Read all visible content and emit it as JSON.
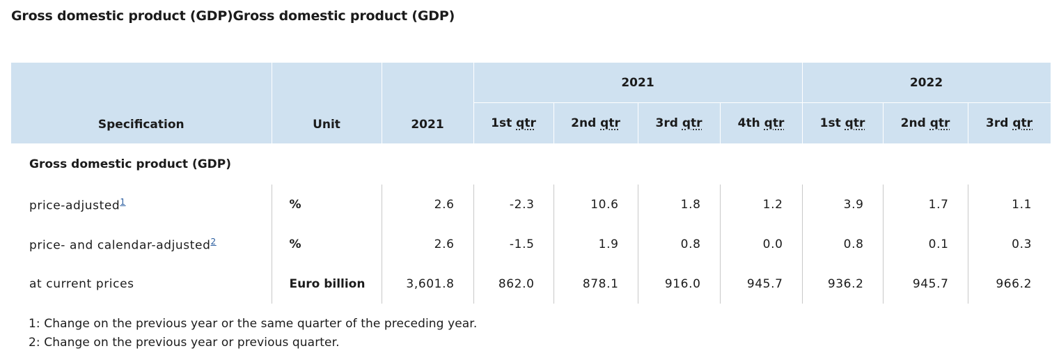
{
  "header": {
    "title": "Gross domestic product (GDP)Gross domestic product (GDP)"
  },
  "table": {
    "columns": [
      "Specification",
      "Unit",
      "2021"
    ],
    "groups": [
      {
        "label": "2021",
        "quarters": [
          {
            "ordinal": "1st",
            "abbr": "qtr"
          },
          {
            "ordinal": "2nd",
            "abbr": "qtr"
          },
          {
            "ordinal": "3rd",
            "abbr": "qtr"
          },
          {
            "ordinal": "4th",
            "abbr": "qtr"
          }
        ]
      },
      {
        "label": "2022",
        "quarters": [
          {
            "ordinal": "1st",
            "abbr": "qtr"
          },
          {
            "ordinal": "2nd",
            "abbr": "qtr"
          },
          {
            "ordinal": "3rd",
            "abbr": "qtr"
          }
        ]
      }
    ],
    "section": "Gross domestic product (GDP)",
    "rows": [
      {
        "label": "price-adjusted",
        "note": "1",
        "unit": "%",
        "values": [
          "2.6",
          "-2.3",
          "10.6",
          "1.8",
          "1.2",
          "3.9",
          "1.7",
          "1.1"
        ]
      },
      {
        "label": "price- and calendar-adjusted",
        "note": "2",
        "unit": "%",
        "values": [
          "2.6",
          "-1.5",
          "1.9",
          "0.8",
          "0.0",
          "0.8",
          "0.1",
          "0.3"
        ]
      },
      {
        "label": "at current prices",
        "unit": "Euro billion",
        "values": [
          "3,601.8",
          "862.0",
          "878.1",
          "916.0",
          "945.7",
          "936.2",
          "945.7",
          "966.2"
        ]
      }
    ]
  },
  "footnotes": [
    "1: Change on the previous year or the same quarter of the preceding year.",
    "2: Change on the previous year or previous quarter."
  ]
}
